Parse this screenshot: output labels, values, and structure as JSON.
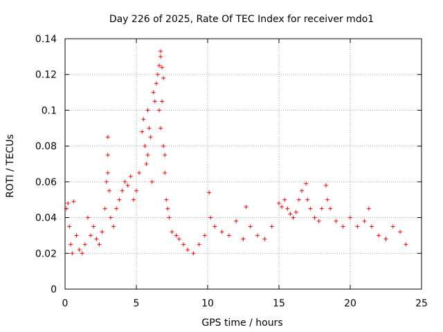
{
  "chart_data": {
    "type": "scatter",
    "title": "Day 226 of 2025, Rate Of TEC Index for receiver mdo1",
    "xlabel": "GPS time / hours",
    "ylabel": "ROTI / TECUs",
    "xlim": [
      0,
      25
    ],
    "ylim": [
      0,
      0.14
    ],
    "xticks": [
      0,
      5,
      10,
      15,
      20,
      25
    ],
    "yticks": [
      0,
      0.02,
      0.04,
      0.06,
      0.08,
      0.1,
      0.12,
      0.14
    ],
    "xtick_labels": [
      "0",
      "5",
      "10",
      "15",
      "20",
      "25"
    ],
    "ytick_labels": [
      "0",
      "0.02",
      "0.04",
      "0.06",
      "0.08",
      "0.1",
      "0.12",
      "0.14"
    ],
    "grid": true,
    "marker": "+",
    "color": "#ff0000",
    "series": [
      {
        "values_note_free": true,
        "x": [
          0.1,
          0.2,
          0.3,
          0.4,
          0.5,
          0.6,
          0.8,
          1.0,
          1.2,
          1.4,
          1.6,
          1.8,
          2.0,
          2.2,
          2.4,
          2.6,
          2.8,
          2.9,
          3.0,
          3.0,
          3.0,
          3.1,
          3.2,
          3.4,
          3.6,
          3.8,
          4.0,
          4.2,
          4.4,
          4.6,
          4.8,
          5.0,
          5.2,
          5.4,
          5.5,
          5.6,
          5.7,
          5.8,
          5.8,
          5.9,
          6.0,
          6.1,
          6.2,
          6.3,
          6.4,
          6.5,
          6.6,
          6.6,
          6.7,
          6.7,
          6.7,
          6.8,
          6.8,
          6.9,
          6.9,
          7.0,
          7.0,
          7.1,
          7.2,
          7.3,
          7.5,
          7.8,
          8.0,
          8.3,
          8.6,
          9.0,
          9.4,
          9.8,
          10.1,
          10.2,
          10.5,
          11.0,
          11.5,
          12.0,
          12.5,
          12.7,
          13.0,
          13.5,
          14.0,
          14.5,
          15.0,
          15.2,
          15.4,
          15.6,
          15.8,
          16.0,
          16.2,
          16.4,
          16.6,
          16.9,
          17.0,
          17.2,
          17.5,
          17.8,
          18.0,
          18.3,
          18.4,
          18.6,
          19.0,
          19.5,
          20.0,
          20.5,
          21.0,
          21.3,
          21.5,
          22.0,
          22.5,
          23.0,
          23.5,
          23.9
        ],
        "y": [
          0.045,
          0.048,
          0.035,
          0.025,
          0.02,
          0.049,
          0.03,
          0.022,
          0.02,
          0.025,
          0.04,
          0.03,
          0.035,
          0.028,
          0.025,
          0.032,
          0.045,
          0.06,
          0.085,
          0.075,
          0.065,
          0.055,
          0.04,
          0.035,
          0.045,
          0.05,
          0.055,
          0.06,
          0.058,
          0.063,
          0.05,
          0.055,
          0.065,
          0.088,
          0.095,
          0.08,
          0.07,
          0.075,
          0.1,
          0.09,
          0.085,
          0.06,
          0.11,
          0.105,
          0.115,
          0.12,
          0.125,
          0.1,
          0.133,
          0.13,
          0.09,
          0.124,
          0.105,
          0.118,
          0.08,
          0.075,
          0.065,
          0.05,
          0.045,
          0.04,
          0.032,
          0.03,
          0.028,
          0.025,
          0.022,
          0.02,
          0.025,
          0.03,
          0.054,
          0.04,
          0.035,
          0.032,
          0.03,
          0.038,
          0.028,
          0.046,
          0.035,
          0.03,
          0.028,
          0.035,
          0.048,
          0.046,
          0.05,
          0.045,
          0.042,
          0.04,
          0.043,
          0.05,
          0.055,
          0.059,
          0.05,
          0.045,
          0.04,
          0.038,
          0.045,
          0.058,
          0.05,
          0.045,
          0.038,
          0.035,
          0.04,
          0.035,
          0.038,
          0.045,
          0.035,
          0.03,
          0.028,
          0.035,
          0.032,
          0.025
        ]
      }
    ]
  }
}
